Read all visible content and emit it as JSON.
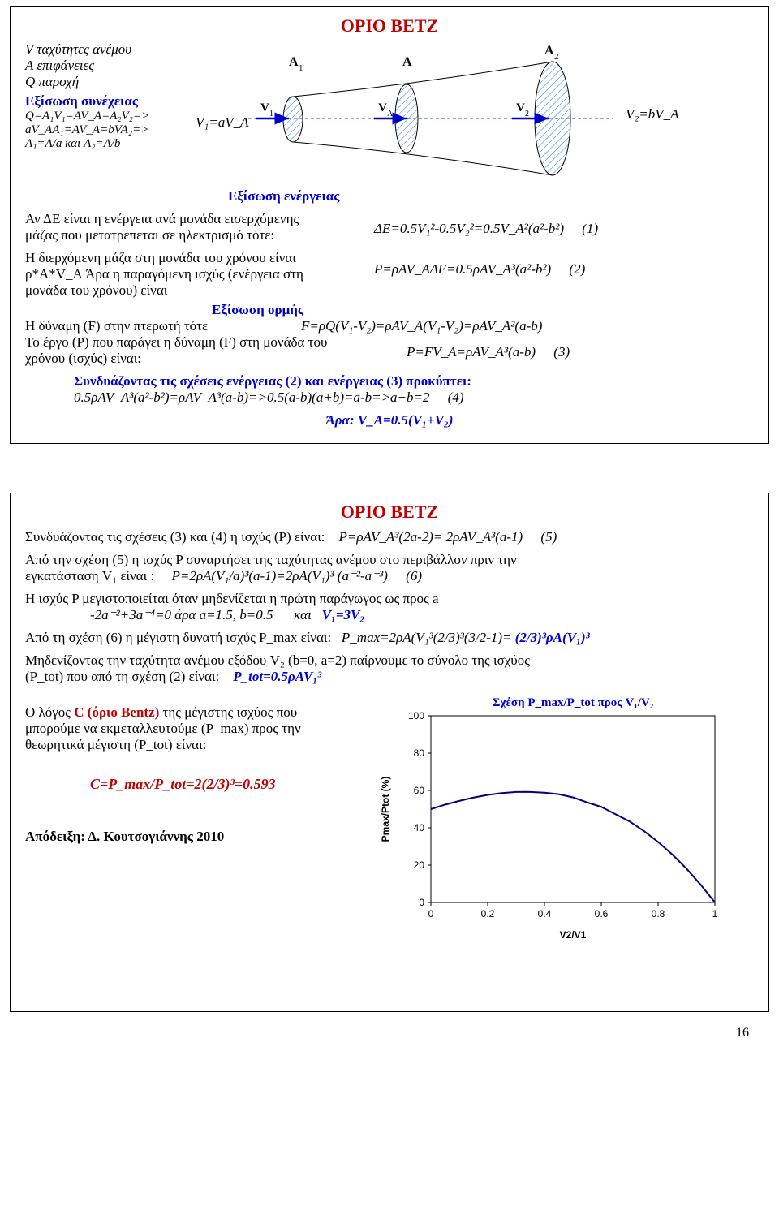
{
  "page_number": "16",
  "slide1": {
    "title": "ΟΡΙΟ BETZ",
    "defs_V": "V ταχύτητες ανέμου",
    "defs_A": "A επιφάνειες",
    "defs_Q": "Q παροχή",
    "continuity_label": "Εξίσωση συνέχειας",
    "continuity_l1": "Q=A₁V₁=AV_A=A₂V₂=>",
    "continuity_l2": "aV_AA₁=AV_A=bVA₂=>",
    "continuity_l3": "A₁=A/a και A₂=A/b",
    "V1aVA": "V₁=aV_A",
    "V2bVA": "V₂=bV_A",
    "energy_label": "Εξίσωση ενέργειας",
    "energy_txt_l1": "Αν ΔΕ είναι η ενέργεια ανά μονάδα εισερχόμενης",
    "energy_txt_l2": "μάζας που μετατρέπεται σε ηλεκτρισμό τότε:",
    "energy_eq": "ΔE=0.5V₁²-0.5V₂²=0.5V_A²(a²-b²)",
    "energy_eqnum": "(1)",
    "mass_l1": "Η διερχόμενη μάζα στη μονάδα του χρόνου είναι",
    "mass_l2": "ρ*A*V_A Άρα η παραγόμενη ισχύς (ενέργεια στη",
    "mass_l3": "μονάδα του χρόνου) είναι",
    "mass_eq": "P=ρAV_AΔE=0.5ρAV_A³(a²-b²)",
    "mass_eqnum": "(2)",
    "momentum_label": "Εξίσωση ορμής",
    "force_txt": "Η δύναμη (F) στην πτερωτή τότε",
    "force_eq": "F=ρQ(V₁-V₂)=ρAV_A(V₁-V₂)=ρAV_A²(a-b)",
    "work_l1": "Το έργο (P) που παράγει η δύναμη (F) στη μονάδα του",
    "work_l2": "χρόνου (ισχύς) είναι:",
    "work_eq": "P=FV_A=ρAV_A³(a-b)",
    "work_eqnum": "(3)",
    "combine_txt": "Συνδυάζοντας τις σχέσεις ενέργειας (2) και ενέργειας (3) προκύπτει:",
    "combine_eq": "0.5ρAV_A³(a²-b²)=ρAV_A³(a-b)=>0.5(a-b)(a+b)=a-b=>a+b=2",
    "combine_eqnum": "(4)",
    "ara": "Άρα: V_A=0.5(V₁+V₂)",
    "diagram": {
      "A1": "A₁",
      "A": "A",
      "A2": "A₂",
      "V1": "V₁",
      "VA": "V_A",
      "V2": "V₂",
      "arrow_color": "#0000cc",
      "hatch_color": "#2a7fb8",
      "outline_color": "#000000"
    }
  },
  "slide2": {
    "title": "ΟΡΙΟ BETZ",
    "l1a": "Συνδυάζοντας τις σχέσεις (3) και (4) η ισχύς (P) είναι:",
    "l1_eq": "P=ρAV_A³(2a-2)= 2ρAV_A³(a-1)",
    "l1_eqnum": "(5)",
    "l2a": "Από την σχέση (5) η ισχύς P συναρτήσει της ταχύτητας ανέμου στο περιβάλλον πριν την",
    "l2b": "εγκατάσταση V₁ είναι :",
    "l2_eq": "P=2ρA(V₁/a)³(a-1)=2ρA(V₁)³ (a⁻²-a⁻³)",
    "l2_eqnum": "(6)",
    "l3a": "Η ισχύς P μεγιστοποιείται όταν μηδενίζεται η πρώτη παράγωγος ως προς a",
    "l3_eq1": "-2a⁻²+3a⁻⁴=0 άρα a=1.5, b=0.5",
    "l3_kai": "και",
    "l3_eq2": "V₁=3V₂",
    "l4a": "Από τη σχέση (6) η μέγιστη δυνατή ισχύς P_max είναι:",
    "l4_eq": "P_max=2ρA(V₁³(2/3)³(3/2-1)= ",
    "l4_eq_bold": "(2/3)³ρA(V₁)³",
    "l5a": "Μηδενίζοντας την ταχύτητα ανέμου εξόδου V₂ (b=0, a=2) παίρνουμε το σύνολο της ισχύος",
    "l5b": "(P_tot) που από τη σχέση (2) είναι:",
    "l5_eq": "P_tot=0.5ρAV₁³",
    "ratio_l1": "Ο λόγος ",
    "ratio_C": "C (όριο Bentz)",
    "ratio_l1b": " της μέγιστης ισχύος που",
    "ratio_l2": "μπορούμε να εκμεταλλευτούμε (P_max) προς την",
    "ratio_l3": "θεωρητικά μέγιστη (P_tot) είναι:",
    "C_eq": "C=P_max/P_tot=2(2/3)³=0.593",
    "proof": "Απόδειξη: Δ. Κουτσογιάννης 2010",
    "chart": {
      "title": "Σχέση P_max/P_tot προς V₁/V₂",
      "xlabel": "V2/V1",
      "ylabel": "Pmax/Ptot (%)",
      "x_ticks": [
        "0",
        "0.2",
        "0.4",
        "0.6",
        "0.8",
        "1"
      ],
      "y_ticks": [
        "0",
        "20",
        "40",
        "60",
        "80",
        "100"
      ],
      "xlim": [
        0,
        1
      ],
      "ylim": [
        0,
        100
      ],
      "curve_color": "#000080",
      "curve_width": 2,
      "bg": "#ffffff",
      "border": "#000000",
      "points": [
        [
          0.0,
          50.0
        ],
        [
          0.05,
          52.4
        ],
        [
          0.1,
          54.4
        ],
        [
          0.15,
          56.2
        ],
        [
          0.2,
          57.6
        ],
        [
          0.25,
          58.6
        ],
        [
          0.3,
          59.2
        ],
        [
          0.3333,
          59.26
        ],
        [
          0.35,
          59.2
        ],
        [
          0.4,
          58.8
        ],
        [
          0.45,
          58.0
        ],
        [
          0.5,
          56.3
        ],
        [
          0.55,
          53.6
        ],
        [
          0.6,
          51.2
        ],
        [
          0.65,
          47.3
        ],
        [
          0.7,
          43.4
        ],
        [
          0.75,
          38.3
        ],
        [
          0.8,
          32.4
        ],
        [
          0.85,
          25.7
        ],
        [
          0.9,
          18.1
        ],
        [
          0.95,
          9.5
        ],
        [
          1.0,
          0.0
        ]
      ]
    }
  }
}
